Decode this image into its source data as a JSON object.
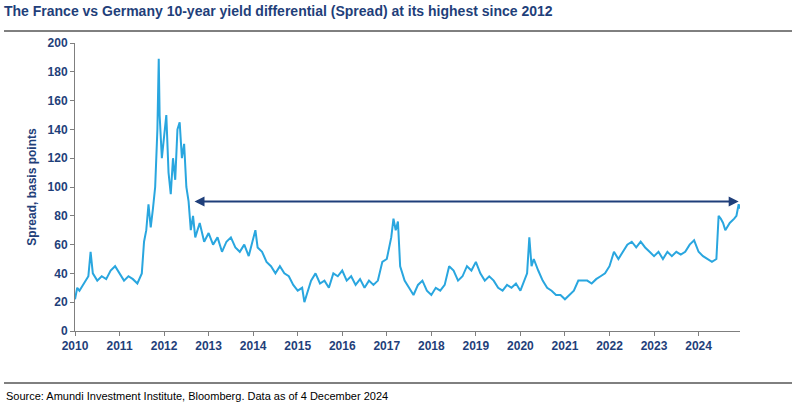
{
  "chart_data": {
    "type": "line",
    "title": "The France vs Germany 10-year yield differential (Spread) at its highest since 2012",
    "y_label": "Spread, basis points",
    "source": "Source: Amundi Investment Institute, Bloomberg. Data as of 4 December 2024",
    "color": "#29a6df",
    "grid": false,
    "xlim": [
      2010,
      2024.93
    ],
    "xticks": [
      2010,
      2011,
      2012,
      2013,
      2014,
      2015,
      2016,
      2017,
      2018,
      2019,
      2020,
      2021,
      2022,
      2023,
      2024
    ],
    "ylim": [
      0,
      200
    ],
    "yticks": [
      0,
      20,
      40,
      60,
      80,
      100,
      120,
      140,
      160,
      180,
      200
    ],
    "arrow": {
      "from": 2012.65,
      "to": 2024.9,
      "value": 90
    },
    "x": [
      2010.0,
      2010.05,
      2010.1,
      2010.2,
      2010.3,
      2010.35,
      2010.4,
      2010.5,
      2010.6,
      2010.7,
      2010.8,
      2010.9,
      2011.0,
      2011.1,
      2011.2,
      2011.3,
      2011.4,
      2011.5,
      2011.55,
      2011.6,
      2011.65,
      2011.7,
      2011.75,
      2011.8,
      2011.85,
      2011.88,
      2011.9,
      2011.95,
      2012.0,
      2012.05,
      2012.1,
      2012.15,
      2012.2,
      2012.25,
      2012.3,
      2012.35,
      2012.4,
      2012.45,
      2012.5,
      2012.55,
      2012.6,
      2012.65,
      2012.7,
      2012.8,
      2012.9,
      2013.0,
      2013.1,
      2013.2,
      2013.3,
      2013.4,
      2013.5,
      2013.6,
      2013.7,
      2013.8,
      2013.9,
      2014.0,
      2014.05,
      2014.1,
      2014.2,
      2014.3,
      2014.4,
      2014.5,
      2014.6,
      2014.7,
      2014.8,
      2014.9,
      2015.0,
      2015.1,
      2015.15,
      2015.2,
      2015.3,
      2015.4,
      2015.5,
      2015.6,
      2015.7,
      2015.8,
      2015.9,
      2016.0,
      2016.1,
      2016.2,
      2016.3,
      2016.4,
      2016.5,
      2016.6,
      2016.7,
      2016.8,
      2016.9,
      2017.0,
      2017.1,
      2017.15,
      2017.2,
      2017.25,
      2017.3,
      2017.35,
      2017.4,
      2017.5,
      2017.6,
      2017.7,
      2017.8,
      2017.9,
      2018.0,
      2018.1,
      2018.2,
      2018.3,
      2018.4,
      2018.5,
      2018.6,
      2018.7,
      2018.8,
      2018.9,
      2019.0,
      2019.1,
      2019.2,
      2019.3,
      2019.4,
      2019.5,
      2019.6,
      2019.7,
      2019.8,
      2019.9,
      2020.0,
      2020.15,
      2020.2,
      2020.25,
      2020.3,
      2020.4,
      2020.5,
      2020.6,
      2020.7,
      2020.8,
      2020.9,
      2021.0,
      2021.1,
      2021.2,
      2021.3,
      2021.4,
      2021.5,
      2021.6,
      2021.7,
      2021.8,
      2021.9,
      2022.0,
      2022.1,
      2022.2,
      2022.3,
      2022.4,
      2022.5,
      2022.6,
      2022.7,
      2022.8,
      2022.9,
      2023.0,
      2023.1,
      2023.2,
      2023.3,
      2023.4,
      2023.5,
      2023.6,
      2023.7,
      2023.8,
      2023.9,
      2024.0,
      2024.1,
      2024.2,
      2024.3,
      2024.4,
      2024.45,
      2024.5,
      2024.55,
      2024.6,
      2024.7,
      2024.8,
      2024.85,
      2024.9,
      2024.93
    ],
    "values": [
      22,
      30,
      28,
      33,
      38,
      55,
      40,
      35,
      38,
      36,
      42,
      45,
      40,
      35,
      38,
      36,
      33,
      40,
      62,
      70,
      88,
      72,
      85,
      100,
      140,
      189,
      150,
      120,
      135,
      150,
      110,
      95,
      120,
      105,
      140,
      145,
      120,
      130,
      100,
      90,
      70,
      80,
      65,
      75,
      62,
      68,
      60,
      65,
      55,
      62,
      65,
      58,
      55,
      60,
      52,
      65,
      70,
      58,
      55,
      48,
      45,
      40,
      45,
      40,
      38,
      32,
      28,
      30,
      20,
      25,
      35,
      40,
      33,
      35,
      30,
      40,
      38,
      42,
      35,
      38,
      32,
      36,
      30,
      35,
      32,
      35,
      48,
      50,
      65,
      78,
      70,
      76,
      45,
      40,
      35,
      30,
      25,
      32,
      35,
      28,
      25,
      30,
      28,
      32,
      45,
      42,
      35,
      38,
      45,
      42,
      48,
      40,
      35,
      38,
      35,
      30,
      28,
      32,
      30,
      33,
      28,
      40,
      65,
      45,
      50,
      42,
      35,
      30,
      28,
      25,
      25,
      22,
      25,
      28,
      35,
      35,
      35,
      33,
      36,
      38,
      40,
      45,
      55,
      50,
      55,
      60,
      62,
      58,
      62,
      58,
      55,
      52,
      55,
      50,
      55,
      52,
      55,
      53,
      55,
      60,
      63,
      55,
      52,
      50,
      48,
      50,
      80,
      78,
      75,
      70,
      75,
      78,
      80,
      88,
      85
    ]
  }
}
